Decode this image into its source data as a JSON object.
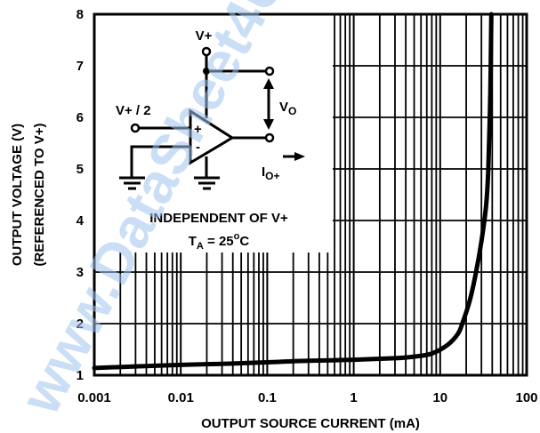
{
  "chart_data": {
    "type": "line",
    "xlabel": "OUTPUT SOURCE CURRENT (mA)",
    "ylabel_line1": "OUTPUT VOLTAGE (V)",
    "ylabel_line2": "(REFERENCED TO V+)",
    "x_scale": "log",
    "xlim": [
      0.001,
      100
    ],
    "ylim": [
      1,
      8
    ],
    "x_ticks": [
      0.001,
      0.01,
      0.1,
      1,
      10,
      100
    ],
    "x_tick_labels": [
      "0.001",
      "0.01",
      "0.1",
      "1",
      "10",
      "100"
    ],
    "y_ticks": [
      1,
      2,
      3,
      4,
      5,
      6,
      7,
      8
    ],
    "y_tick_labels": [
      "1",
      "2",
      "3",
      "4",
      "5",
      "6",
      "7",
      "8"
    ],
    "grid": true,
    "series": [
      {
        "x": [
          0.001,
          0.003,
          0.01,
          0.03,
          0.1,
          0.3,
          1,
          3,
          5,
          8,
          12,
          16,
          18,
          22,
          26,
          30,
          34,
          36,
          38,
          39
        ],
        "y": [
          1.14,
          1.17,
          1.2,
          1.22,
          1.25,
          1.28,
          1.3,
          1.33,
          1.36,
          1.42,
          1.58,
          1.8,
          2.0,
          2.45,
          3.0,
          3.6,
          4.3,
          5.0,
          6.5,
          8.0
        ]
      }
    ],
    "annotations": {
      "vplus_label": "V+",
      "vhalf_label": "V+ / 2",
      "vo_label": "V",
      "vo_sub": "O",
      "io_label": "I",
      "io_sub": "O+",
      "opamp_plus": "+",
      "opamp_minus": "-",
      "condition": "INDEPENDENT OF V+",
      "ta_prefix": "T",
      "ta_sub": "A",
      "ta_value": " = 25",
      "ta_deg": "o",
      "ta_unit": "C"
    }
  },
  "watermark": {
    "text": "www.DataSheet4U.com",
    "color": "#9fc3ee"
  }
}
